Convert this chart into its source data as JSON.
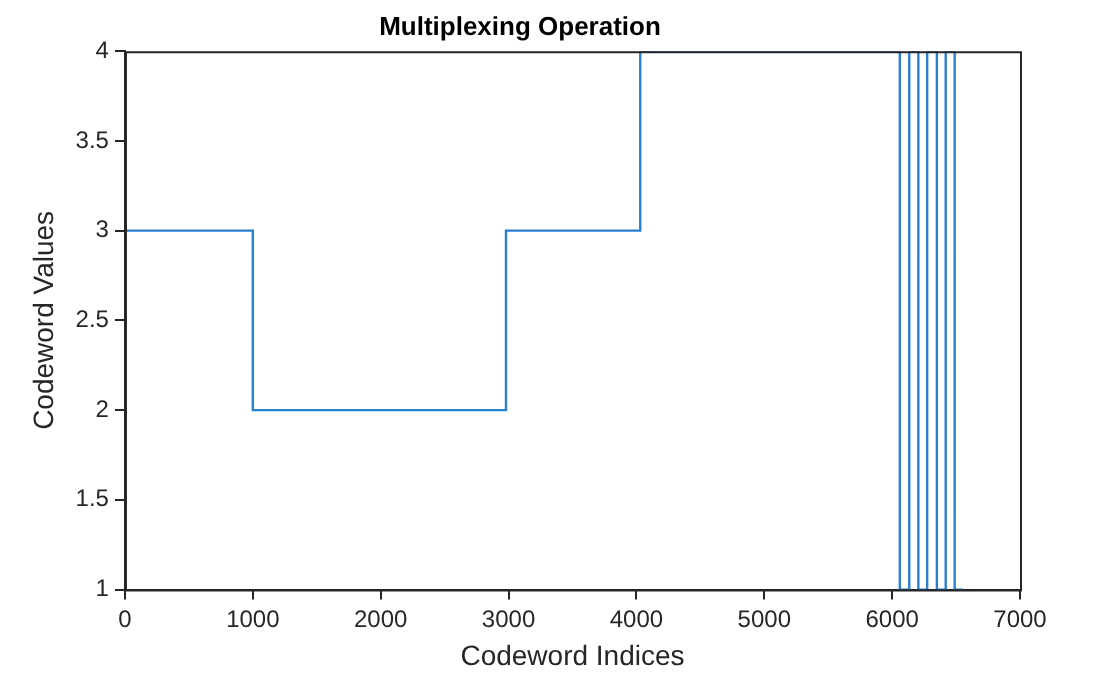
{
  "chart_data": {
    "type": "step",
    "title": "Multiplexing Operation",
    "xlabel": "Codeword Indices",
    "ylabel": "Codeword Values",
    "x": [
      0,
      1000,
      2980,
      4030,
      6060,
      6134,
      6205,
      6274,
      6350,
      6419,
      6489,
      6553
    ],
    "values": [
      3,
      2,
      3,
      4,
      1,
      4,
      1,
      4,
      1,
      4,
      1,
      1
    ],
    "color": "#2b7fd1",
    "xlim": [
      0,
      7000
    ],
    "xticks": [
      0,
      1000,
      2000,
      3000,
      4000,
      5000,
      6000,
      7000
    ],
    "ylim": [
      1,
      4
    ],
    "yticks": [
      1,
      1.5,
      2,
      2.5,
      3,
      3.5,
      4
    ],
    "grid": false,
    "legend": false
  }
}
